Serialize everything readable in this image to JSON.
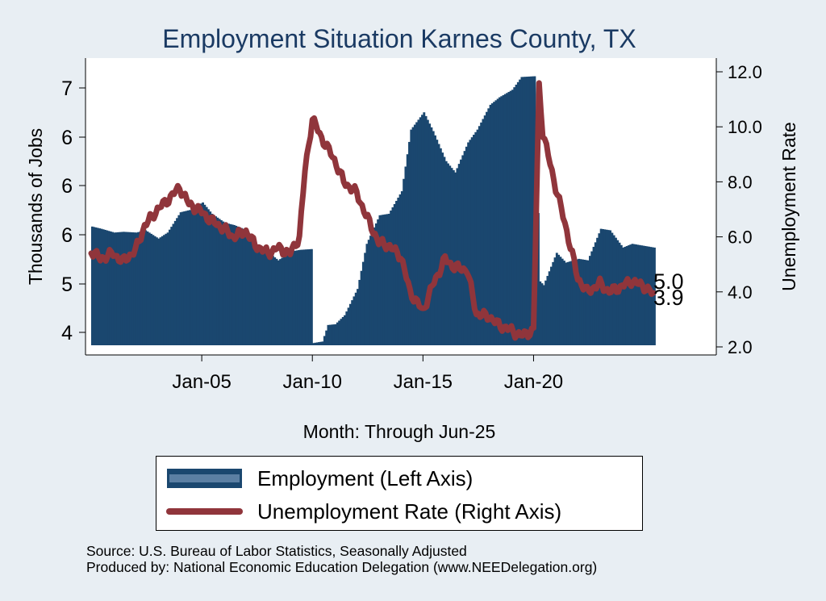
{
  "chart_data": {
    "type": "bar+line",
    "title": "Employment Situation Karnes  County, TX",
    "xlabel": "Month: Through Jun-25",
    "ylabel_left": "Thousands of Jobs",
    "ylabel_right": "Unemployment Rate",
    "x_ticks": [
      "Jan-05",
      "Jan-10",
      "Jan-15",
      "Jan-20"
    ],
    "y_left_ticks": [
      "4",
      "5",
      "6",
      "6",
      "6",
      "7"
    ],
    "y_left_range": [
      3.75,
      7.4
    ],
    "y_right_ticks": [
      "2.0",
      "4.0",
      "6.0",
      "8.0",
      "10.0",
      "12.0"
    ],
    "y_right_range": [
      1.5,
      12.6
    ],
    "x_range": [
      "Jan-2000",
      "Jun-2025"
    ],
    "grid": false,
    "end_labels": {
      "employment": "5.0",
      "unemployment": "3.9"
    },
    "series": [
      {
        "name": "Employment (Left Axis)",
        "type": "bar",
        "color": "#1a476f",
        "points": [
          [
            "2000-01",
            5.33
          ],
          [
            "2000-06",
            5.3
          ],
          [
            "2001-01",
            5.25
          ],
          [
            "2001-06",
            5.26
          ],
          [
            "2002-01",
            5.25
          ],
          [
            "2002-06",
            5.28
          ],
          [
            "2003-01",
            5.17
          ],
          [
            "2003-06",
            5.25
          ],
          [
            "2004-01",
            5.52
          ],
          [
            "2004-06",
            5.55
          ],
          [
            "2005-01",
            5.65
          ],
          [
            "2005-06",
            5.5
          ],
          [
            "2006-01",
            5.38
          ],
          [
            "2006-06",
            5.35
          ],
          [
            "2007-01",
            5.28
          ],
          [
            "2007-06",
            5.1
          ],
          [
            "2008-01",
            4.98
          ],
          [
            "2008-06",
            4.88
          ],
          [
            "2009-01",
            5.0
          ],
          [
            "2009-06",
            5.02
          ],
          [
            "2009-12",
            5.03
          ],
          [
            "2010-01",
            3.78
          ],
          [
            "2010-06",
            3.8
          ],
          [
            "2010-09",
            4.02
          ],
          [
            "2011-01",
            4.03
          ],
          [
            "2011-06",
            4.15
          ],
          [
            "2012-01",
            4.5
          ],
          [
            "2012-06",
            5.1
          ],
          [
            "2013-01",
            5.48
          ],
          [
            "2013-06",
            5.5
          ],
          [
            "2014-01",
            5.8
          ],
          [
            "2014-06",
            6.62
          ],
          [
            "2015-01",
            6.85
          ],
          [
            "2015-06",
            6.6
          ],
          [
            "2016-01",
            6.2
          ],
          [
            "2016-06",
            6.05
          ],
          [
            "2017-01",
            6.45
          ],
          [
            "2017-06",
            6.62
          ],
          [
            "2018-01",
            6.95
          ],
          [
            "2018-06",
            7.05
          ],
          [
            "2019-01",
            7.15
          ],
          [
            "2019-06",
            7.32
          ],
          [
            "2020-01",
            7.33
          ],
          [
            "2020-04",
            4.6
          ],
          [
            "2020-06",
            4.55
          ],
          [
            "2021-01",
            4.98
          ],
          [
            "2021-06",
            4.85
          ],
          [
            "2022-01",
            4.9
          ],
          [
            "2022-06",
            4.88
          ],
          [
            "2023-01",
            5.3
          ],
          [
            "2023-06",
            5.28
          ],
          [
            "2024-01",
            5.05
          ],
          [
            "2024-06",
            5.1
          ],
          [
            "2025-06",
            5.05
          ]
        ]
      },
      {
        "name": "Unemployment Rate (Right Axis)",
        "type": "line",
        "color": "#90353b",
        "points": [
          [
            "2000-01",
            5.5
          ],
          [
            "2000-06",
            5.2
          ],
          [
            "2001-01",
            5.4
          ],
          [
            "2001-06",
            5.1
          ],
          [
            "2002-01",
            5.5
          ],
          [
            "2002-06",
            6.4
          ],
          [
            "2003-01",
            7.0
          ],
          [
            "2003-06",
            7.3
          ],
          [
            "2004-01",
            7.8
          ],
          [
            "2004-06",
            7.2
          ],
          [
            "2005-01",
            6.9
          ],
          [
            "2005-06",
            6.6
          ],
          [
            "2006-01",
            6.3
          ],
          [
            "2006-06",
            6.0
          ],
          [
            "2007-01",
            6.2
          ],
          [
            "2007-06",
            5.7
          ],
          [
            "2008-01",
            5.4
          ],
          [
            "2008-06",
            5.6
          ],
          [
            "2009-01",
            5.4
          ],
          [
            "2009-06",
            6.0
          ],
          [
            "2009-09",
            8.4
          ],
          [
            "2010-01",
            10.3
          ],
          [
            "2010-06",
            9.6
          ],
          [
            "2011-01",
            8.8
          ],
          [
            "2011-06",
            8.0
          ],
          [
            "2012-01",
            7.6
          ],
          [
            "2012-06",
            6.8
          ],
          [
            "2013-01",
            5.8
          ],
          [
            "2013-06",
            5.7
          ],
          [
            "2014-01",
            5.3
          ],
          [
            "2014-06",
            4.0
          ],
          [
            "2015-01",
            3.3
          ],
          [
            "2015-06",
            4.2
          ],
          [
            "2016-01",
            5.2
          ],
          [
            "2016-06",
            4.9
          ],
          [
            "2017-01",
            4.8
          ],
          [
            "2017-06",
            3.2
          ],
          [
            "2018-01",
            3.1
          ],
          [
            "2018-06",
            2.8
          ],
          [
            "2019-01",
            2.6
          ],
          [
            "2019-06",
            2.4
          ],
          [
            "2020-01",
            2.6
          ],
          [
            "2020-04",
            11.5
          ],
          [
            "2020-06",
            9.8
          ],
          [
            "2021-01",
            7.8
          ],
          [
            "2021-06",
            6.5
          ],
          [
            "2022-01",
            4.5
          ],
          [
            "2022-06",
            4.0
          ],
          [
            "2023-01",
            4.3
          ],
          [
            "2023-06",
            4.0
          ],
          [
            "2024-01",
            4.2
          ],
          [
            "2024-06",
            4.4
          ],
          [
            "2025-01",
            4.2
          ],
          [
            "2025-06",
            3.9
          ]
        ]
      }
    ]
  },
  "legend": {
    "employment_label": "Employment (Left Axis)",
    "unemployment_label": "Unemployment Rate (Right Axis)"
  },
  "footer": {
    "source": "Source: U.S. Bureau of Labor Statistics, Seasonally Adjusted",
    "produced_by": "Produced by: National Economic Education Delegation (www.NEEDelegation.org)"
  },
  "colors": {
    "background": "#e8eef3",
    "plot_background": "#ffffff",
    "employment": "#1a476f",
    "unemployment": "#90353b",
    "title": "#1a3a63"
  }
}
